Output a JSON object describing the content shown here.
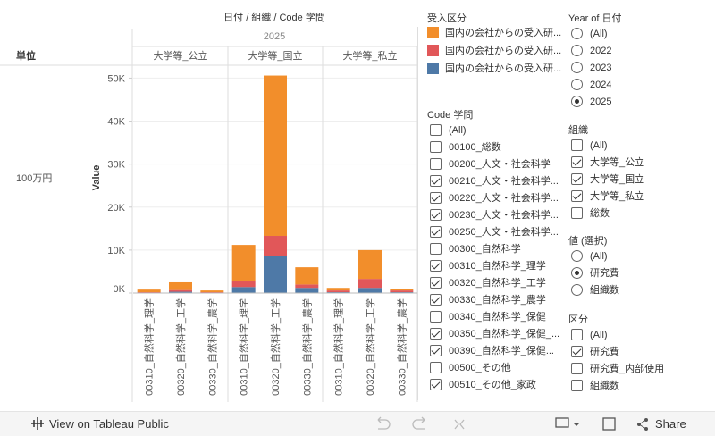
{
  "chart_data": {
    "type": "bar",
    "stacked": true,
    "title": "日付 / 組織 / Code 学問",
    "column_header": "2025",
    "row_header": "単位",
    "row_label": "100万円",
    "y_label": "Value",
    "panels": [
      "大学等_公立",
      "大学等_国立",
      "大学等_私立"
    ],
    "categories": [
      "00310_自然科学_理学",
      "00320_自然科学_工学",
      "00330_自然科学_農学",
      "00310_自然科学_理学",
      "00320_自然科学_工学",
      "00330_自然科学_農学",
      "00310_自然科学_理学",
      "00320_自然科学_工学",
      "00330_自然科学_農学"
    ],
    "legend_title": "受入区分",
    "series": [
      {
        "name": "国内の会社からの受入研...",
        "color": "#f28e2b",
        "values": [
          600,
          1800,
          400,
          8500,
          37300,
          4000,
          600,
          6700,
          400
        ]
      },
      {
        "name": "国内の会社からの受入研...",
        "color": "#e15759",
        "values": [
          100,
          400,
          100,
          1300,
          4600,
          800,
          400,
          2100,
          400
        ]
      },
      {
        "name": "国内の会社からの受入研...",
        "color": "#4e79a7",
        "values": [
          100,
          300,
          100,
          1400,
          8700,
          1200,
          200,
          1200,
          200
        ]
      }
    ],
    "ylim": [
      0,
      53000
    ],
    "yticks": [
      {
        "value": 0,
        "label": "0K"
      },
      {
        "value": 10000,
        "label": "10K"
      },
      {
        "value": 20000,
        "label": "20K"
      },
      {
        "value": 30000,
        "label": "30K"
      },
      {
        "value": 40000,
        "label": "40K"
      },
      {
        "value": 50000,
        "label": "50K"
      }
    ],
    "grid": true
  },
  "filters": [
    {
      "title": "Code 学問",
      "kind": "checkbox",
      "items": [
        {
          "label": "(All)",
          "selected": false
        },
        {
          "label": "00100_総数",
          "selected": false
        },
        {
          "label": "00200_人文・社会科学",
          "selected": false
        },
        {
          "label": "00210_人文・社会科学...",
          "selected": true
        },
        {
          "label": "00220_人文・社会科学...",
          "selected": true
        },
        {
          "label": "00230_人文・社会科学...",
          "selected": true
        },
        {
          "label": "00250_人文・社会科学...",
          "selected": true
        },
        {
          "label": "00300_自然科学",
          "selected": false
        },
        {
          "label": "00310_自然科学_理学",
          "selected": true
        },
        {
          "label": "00320_自然科学_工学",
          "selected": true
        },
        {
          "label": "00330_自然科学_農学",
          "selected": true
        },
        {
          "label": "00340_自然科学_保健",
          "selected": false
        },
        {
          "label": "00350_自然科学_保健_...",
          "selected": true
        },
        {
          "label": "00390_自然科学_保健...",
          "selected": true
        },
        {
          "label": "00500_その他",
          "selected": false
        },
        {
          "label": "00510_その他_家政",
          "selected": true
        }
      ]
    },
    {
      "title": "Year of 日付",
      "kind": "radio",
      "items": [
        {
          "label": "(All)",
          "selected": false
        },
        {
          "label": "2022",
          "selected": false
        },
        {
          "label": "2023",
          "selected": false
        },
        {
          "label": "2024",
          "selected": false
        },
        {
          "label": "2025",
          "selected": true
        }
      ]
    },
    {
      "title": "組織",
      "kind": "checkbox",
      "items": [
        {
          "label": "(All)",
          "selected": false
        },
        {
          "label": "大学等_公立",
          "selected": true
        },
        {
          "label": "大学等_国立",
          "selected": true
        },
        {
          "label": "大学等_私立",
          "selected": true
        },
        {
          "label": "総数",
          "selected": false
        }
      ]
    },
    {
      "title": "値 (選択)",
      "kind": "radio",
      "items": [
        {
          "label": "(All)",
          "selected": false
        },
        {
          "label": "研究費",
          "selected": true
        },
        {
          "label": "組織数",
          "selected": false
        }
      ]
    },
    {
      "title": "区分",
      "kind": "checkbox",
      "items": [
        {
          "label": "(All)",
          "selected": false
        },
        {
          "label": "研究費",
          "selected": true
        },
        {
          "label": "研究費_内部使用",
          "selected": false
        },
        {
          "label": "組織数",
          "selected": false
        }
      ]
    }
  ],
  "toolbar": {
    "view_link": "View on Tableau Public",
    "share": "Share"
  }
}
